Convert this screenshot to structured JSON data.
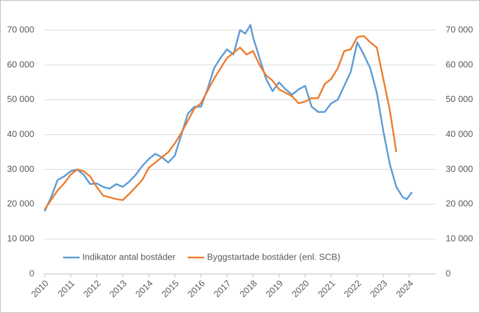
{
  "chart_data": {
    "type": "line",
    "series": [
      {
        "name": "Indikator antal bostäder",
        "color": "#5b9bd5",
        "x": [
          2010,
          2010.25,
          2010.5,
          2010.75,
          2011,
          2011.25,
          2011.5,
          2011.75,
          2012,
          2012.25,
          2012.5,
          2012.75,
          2013,
          2013.25,
          2013.5,
          2013.75,
          2014,
          2014.25,
          2014.5,
          2014.75,
          2015,
          2015.25,
          2015.5,
          2015.75,
          2016,
          2016.25,
          2016.5,
          2016.75,
          2017,
          2017.25,
          2017.5,
          2017.7,
          2017.9,
          2018,
          2018.25,
          2018.5,
          2018.75,
          2019,
          2019.25,
          2019.5,
          2019.75,
          2020,
          2020.25,
          2020.5,
          2020.75,
          2021,
          2021.25,
          2021.5,
          2021.75,
          2022,
          2022.25,
          2022.5,
          2022.75,
          2023,
          2023.25,
          2023.5,
          2023.75,
          2023.9,
          2024.1
        ],
        "values": [
          18000,
          22000,
          27000,
          28000,
          29500,
          30000,
          28500,
          25800,
          26000,
          25000,
          24500,
          25800,
          25000,
          26500,
          28500,
          31000,
          33000,
          34500,
          33500,
          32000,
          34000,
          40000,
          46000,
          48000,
          48000,
          53000,
          59000,
          62000,
          64500,
          63000,
          70000,
          69000,
          71500,
          68000,
          62000,
          56000,
          52500,
          55000,
          53000,
          51500,
          53000,
          54000,
          48000,
          46500,
          46500,
          49000,
          50000,
          54000,
          58000,
          66500,
          63000,
          59000,
          52000,
          41000,
          31500,
          25000,
          22000,
          21500,
          23500
        ]
      },
      {
        "name": "Byggstartade bostäder (enl. SCB)",
        "color": "#ed7d31",
        "x": [
          2010,
          2010.5,
          2010.75,
          2011,
          2011.25,
          2011.5,
          2011.75,
          2012,
          2012.25,
          2012.5,
          2012.75,
          2013,
          2013.25,
          2013.5,
          2013.75,
          2014,
          2014.25,
          2014.5,
          2014.75,
          2015,
          2015.25,
          2015.5,
          2015.75,
          2016,
          2016.25,
          2016.5,
          2016.75,
          2017,
          2017.25,
          2017.5,
          2017.75,
          2018,
          2018.25,
          2018.5,
          2018.75,
          2019,
          2019.25,
          2019.5,
          2019.75,
          2020,
          2020.25,
          2020.5,
          2020.75,
          2021,
          2021.25,
          2021.5,
          2021.75,
          2022,
          2022.25,
          2022.5,
          2022.75,
          2023,
          2023.25,
          2023.5
        ],
        "values": [
          18500,
          24000,
          26000,
          28500,
          30000,
          29500,
          28000,
          25000,
          22500,
          22000,
          21500,
          21200,
          23000,
          25000,
          27000,
          30500,
          32000,
          33500,
          35000,
          37500,
          40500,
          44000,
          47500,
          49000,
          52500,
          56000,
          59000,
          62000,
          63500,
          65000,
          63000,
          64000,
          60000,
          57000,
          55500,
          53000,
          52000,
          51000,
          49000,
          49500,
          50500,
          50500,
          54500,
          56000,
          59000,
          64000,
          64500,
          68000,
          68300,
          66500,
          65000,
          56000,
          47000,
          35000
        ]
      }
    ],
    "xlim": [
      2010,
      2025
    ],
    "xticks": [
      2010,
      2011,
      2012,
      2013,
      2014,
      2015,
      2016,
      2017,
      2018,
      2019,
      2020,
      2021,
      2022,
      2023,
      2024
    ],
    "ylim": [
      0,
      70000
    ],
    "yticks": [
      0,
      {
        "value": 10000,
        "label": "10 000"
      },
      {
        "value": 20000,
        "label": "20 000"
      },
      {
        "value": 30000,
        "label": "30 000"
      },
      {
        "value": 40000,
        "label": "40 000"
      },
      {
        "value": 50000,
        "label": "50 000"
      },
      {
        "value": 60000,
        "label": "60 000"
      },
      {
        "value": 70000,
        "label": "70 000"
      }
    ],
    "y2lim": [
      0,
      70000
    ],
    "y2ticks": [
      0,
      {
        "value": 10000,
        "label": "10 000"
      },
      {
        "value": 20000,
        "label": "20 000"
      },
      {
        "value": 30000,
        "label": "30 000"
      },
      {
        "value": 40000,
        "label": "40 000"
      },
      {
        "value": 50000,
        "label": "50 000"
      },
      {
        "value": 60000,
        "label": "60 000"
      },
      {
        "value": 70000,
        "label": "70 000"
      }
    ],
    "grid": true,
    "legend": "bottom"
  }
}
